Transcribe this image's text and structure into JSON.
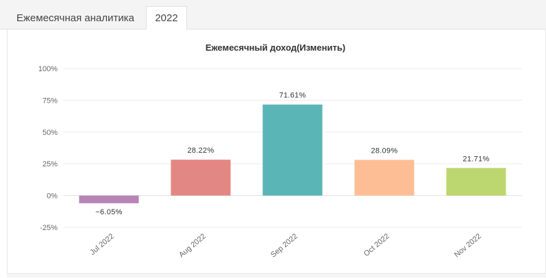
{
  "tabs": [
    {
      "label": "Ежемесячная аналитика",
      "active": false
    },
    {
      "label": "2022",
      "active": true
    }
  ],
  "colors": {
    "grid": "#ebebeb",
    "zero_line": "#e0e0e0",
    "axis_text": "#666666",
    "label_text": "#333333"
  },
  "chart_data": {
    "type": "bar",
    "title": "Ежемесячный доход(Изменить)",
    "xlabel": "",
    "ylabel": "",
    "categories": [
      "Jul 2022",
      "Aug 2022",
      "Sep 2022",
      "Oct 2022",
      "Nov 2022"
    ],
    "values": [
      -6.05,
      28.22,
      71.61,
      28.09,
      21.71
    ],
    "data_labels": [
      "−6.05%",
      "28.22%",
      "71.61%",
      "28.09%",
      "21.71%"
    ],
    "bar_colors": [
      "#b784b5",
      "#e38784",
      "#5ab5b6",
      "#febe95",
      "#bdd770"
    ],
    "ylim": [
      -25,
      100
    ],
    "yticks": [
      -25,
      0,
      25,
      50,
      75,
      100
    ],
    "ytick_labels": [
      "-25%",
      "0%",
      "25%",
      "50%",
      "75%",
      "100%"
    ],
    "grid": true,
    "legend": "none"
  }
}
